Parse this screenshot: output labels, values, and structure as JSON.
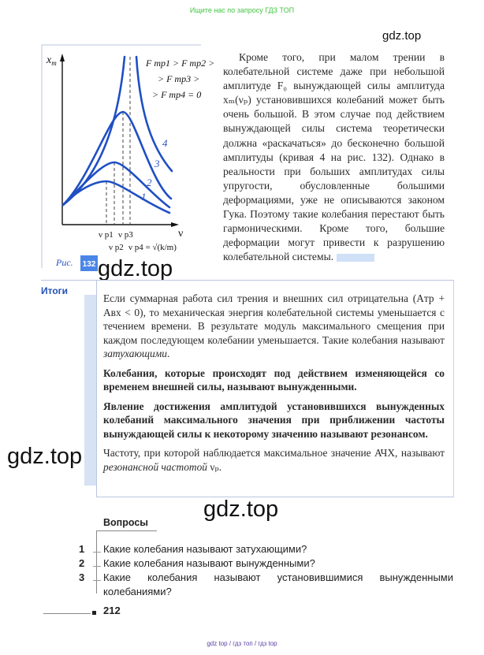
{
  "banner_top": "Ищите нас по запросу ГДЗ ТОП",
  "banner_bottom": "gdz top  /  гдз топ  /  гдз top",
  "watermarks": [
    "gdz.top",
    "gdz.top",
    "gdz.top",
    "gdz.top"
  ],
  "figure": {
    "y_label": "x",
    "y_label_sub": "m",
    "x_label": "ν",
    "legend_lines": [
      "F тр1 > F тр2 >",
      "> F тр3 >",
      "> F тр4 = 0"
    ],
    "curve_labels": [
      "1",
      "2",
      "3",
      "4"
    ],
    "tick_labels": [
      "ν p1",
      "ν p2",
      "ν p3",
      "ν p4 = √(k/m)"
    ],
    "caption_prefix": "Рис.",
    "number": "132",
    "curve_color": "#1f4fc4",
    "badge_color": "#4a86e8"
  },
  "body_text": "Кроме того, при малом трении в колебательной системе даже при небольшой амплитуде F₀ вынуждающей силы амплитуда xₘ(νₚ) установившихся колебаний может быть очень большой. В этом случае под действием вынуждающей силы система теоретически должна «раскачаться» до бесконечно большой амплитуды (кривая 4 на рис. 132). Однако в реальности при больших амплитудах силы упругости, обусловленные большими деформациями, уже не описываются законом Гука. Поэтому такие колебания перестают быть гармоническими. Кроме того, большие деформации могут привести к разрушению колебательной системы.",
  "summary": {
    "title": "Итоги",
    "p1_main": "Если суммарная работа сил трения и внешних сил отрицательна (Aтр + Aвх < 0), то механическая энергия колебательной системы уменьшается с течением времени. В результате модуль максимального смещения при каждом последующем колебании уменьшается. Такие колебания называют ",
    "p1_italic": "затухающими",
    "p2": "Колебания, которые происходят под действием изменяющейся со временем внешней силы, называют вынужденными.",
    "p3": "Явление достижения амплитудой установившихся вынужденных колебаний максимального значения при приближении частоты вынуждающей силы к некоторому значению называют резонансом.",
    "p4_main": "Частоту, при которой наблюдается максимальное значение АЧХ, называют ",
    "p4_italic": "резонансной частотой",
    "p4_end": " νₚ."
  },
  "questions": {
    "title": "Вопросы",
    "items": [
      {
        "num": "1",
        "text": "Какие колебания называют затухающими?"
      },
      {
        "num": "2",
        "text": "Какие колебания называют вынужденными?"
      },
      {
        "num": "3",
        "text": "Какие колебания называют установившимися вынужденными колебаниями?"
      }
    ]
  },
  "page_number": "212"
}
